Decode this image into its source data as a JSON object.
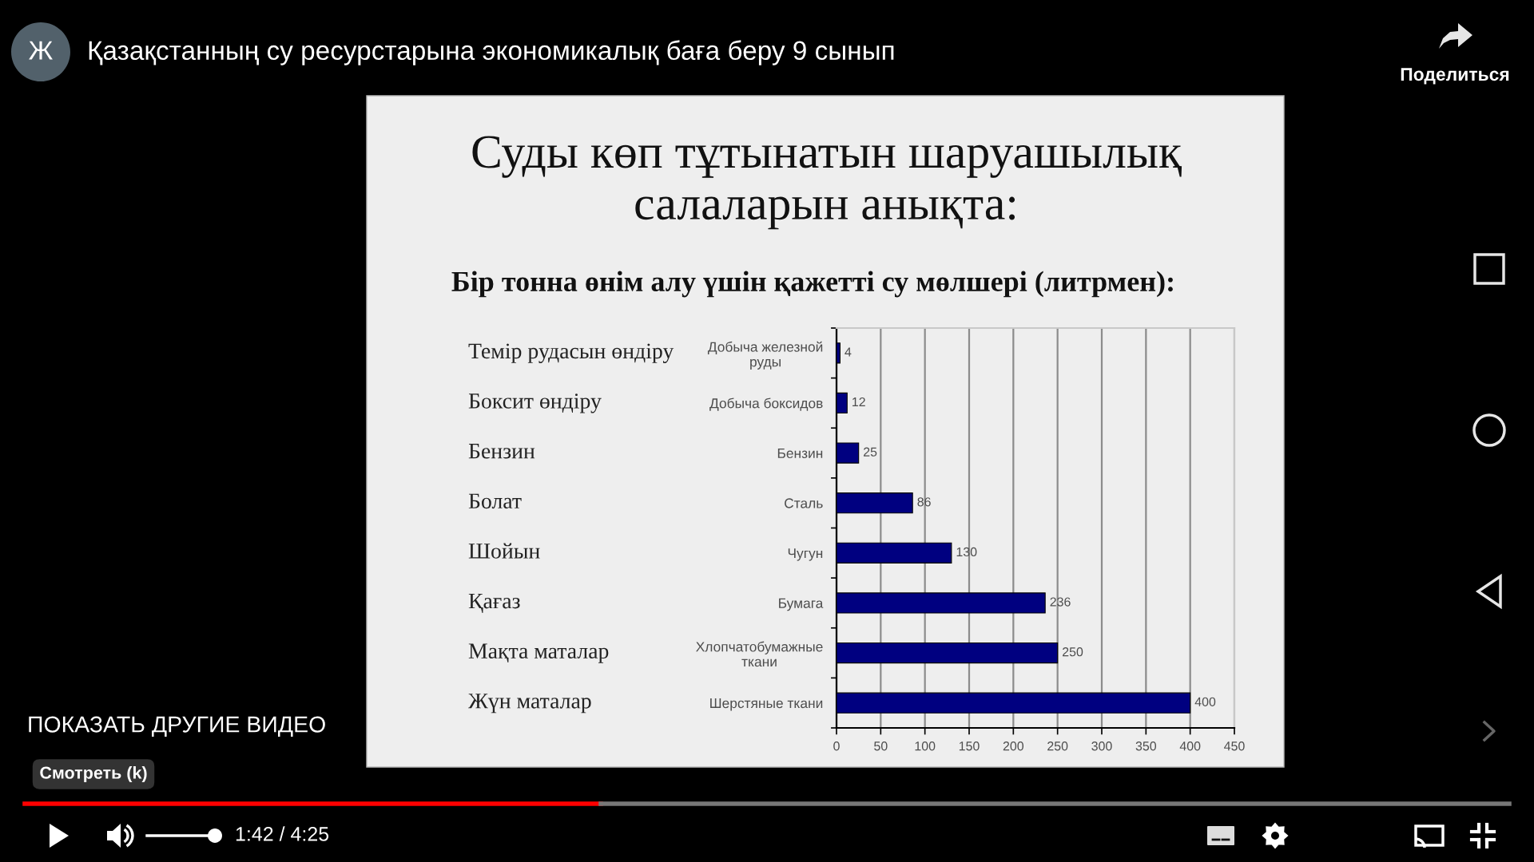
{
  "chart_data": {
    "type": "bar",
    "orientation": "horizontal",
    "title": "Суды көп тұтынатын шаруашылық\nсалаларын анықта:",
    "subtitle": "Бір тонна өнім алу үшін қажетті су мөлшері (литрмен):",
    "categories": [
      "Добыча железной\nруды",
      "Добыча боксидов",
      "Бензин",
      "Сталь",
      "Чугун",
      "Бумага",
      "Хлопчатобумажные\nткани",
      "Шерстяные ткани"
    ],
    "y2_categories": [
      "Темір рудасын өндіру",
      "Боксит өндіру",
      "Бензин",
      "Болат",
      "Шойын",
      "Қағаз",
      "Мақта маталар",
      "Жүн маталар"
    ],
    "values": [
      4,
      12,
      25,
      86,
      130,
      236,
      250,
      400
    ],
    "color": "#000080",
    "xlim": [
      0,
      450
    ],
    "xticks": [
      0,
      50,
      100,
      150,
      200,
      250,
      300,
      350,
      400,
      450
    ],
    "grid": "x",
    "data_labels": true,
    "annotations": [
      "Қазақстанның су ресурстарына экономикалық баға беру 9 сынып",
      "Ж",
      "Поделиться",
      "ПОКАЗАТЬ ДРУГИЕ ВИДЕО",
      "Смотреть (k)",
      "1:42 / 4:25"
    ]
  }
}
